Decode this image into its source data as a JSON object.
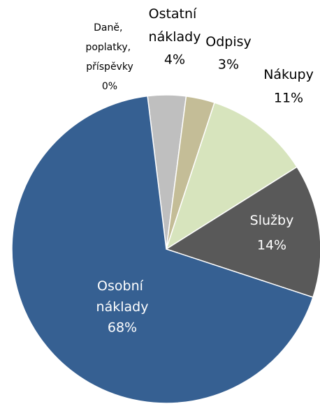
{
  "chart_data": {
    "type": "pie",
    "categories": [
      "Daně, poplatky, příspěvky",
      "Ostatní náklady",
      "Odpisy",
      "Nákupy",
      "Služby",
      "Osobní náklady"
    ],
    "values": [
      0,
      4,
      3,
      11,
      14,
      68
    ],
    "value_labels": [
      "0%",
      "4%",
      "3%",
      "11%",
      "14%",
      "68%"
    ],
    "colors": [
      "#ffff00",
      "#bfbfbf",
      "#c4bd97",
      "#d7e4bd",
      "#595959",
      "#366092"
    ]
  }
}
